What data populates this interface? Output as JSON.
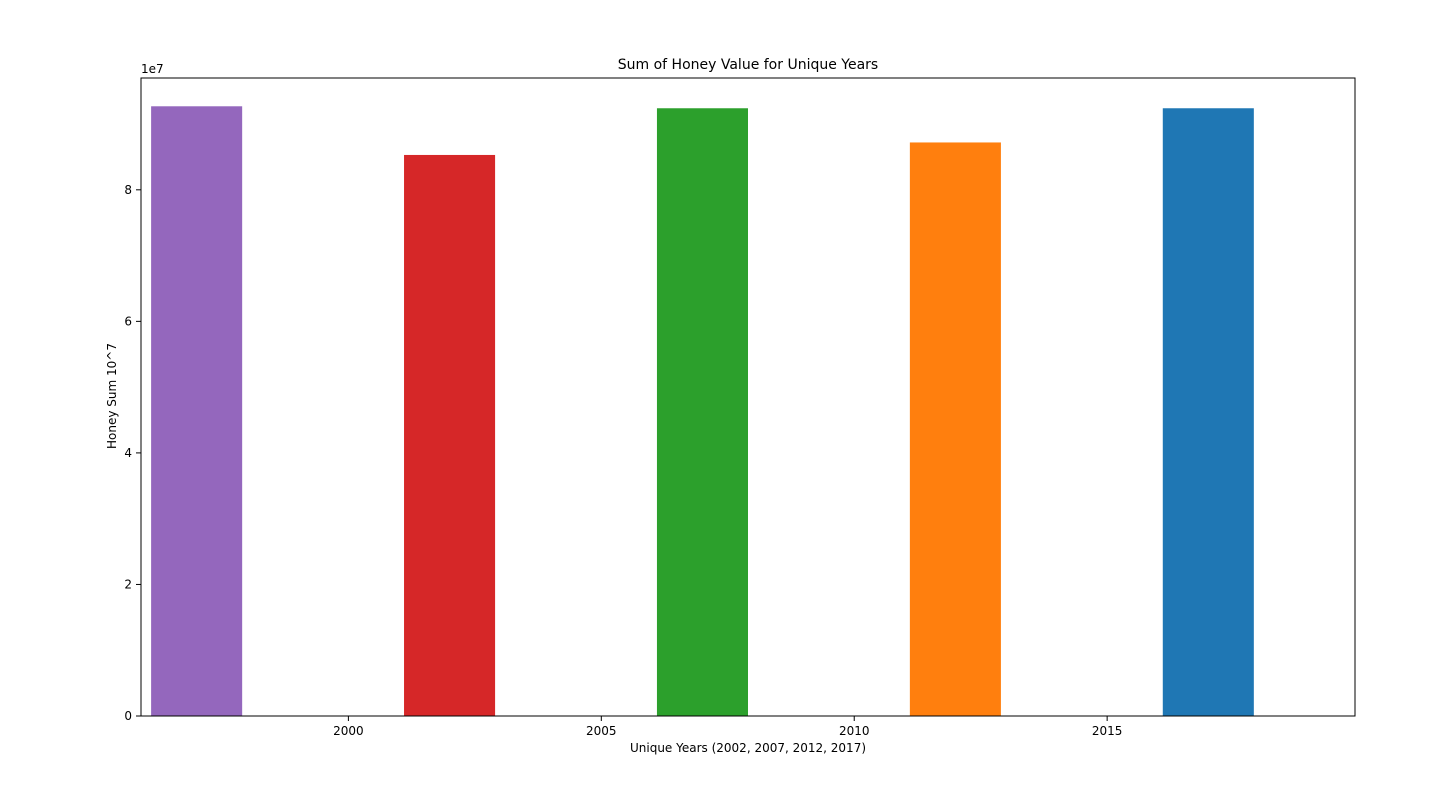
{
  "chart_data": {
    "type": "bar",
    "title": "Sum of Honey Value for Unique Years",
    "xlabel": "Unique Years (2002, 2007, 2012, 2017)",
    "ylabel": "Honey Sum 10^7",
    "offset_label": "1e7",
    "x": [
      1997,
      2002,
      2007,
      2012,
      2017
    ],
    "values": [
      92700000,
      85300000,
      92400000,
      87200000,
      92400000
    ],
    "bar_width": 1.8,
    "colors": [
      "#9467bd",
      "#d62728",
      "#2ca02c",
      "#ff7f0e",
      "#1f77b4"
    ],
    "xlim": [
      1995.9,
      2019.9
    ],
    "ylim": [
      0,
      97000000
    ],
    "xticks": [
      2000,
      2005,
      2010,
      2015
    ],
    "xtick_labels": [
      "2000",
      "2005",
      "2010",
      "2015"
    ],
    "yticks": [
      0,
      20000000,
      40000000,
      60000000,
      80000000
    ],
    "ytick_labels": [
      "0",
      "2",
      "4",
      "6",
      "8"
    ],
    "grid": false,
    "legend": false
  }
}
